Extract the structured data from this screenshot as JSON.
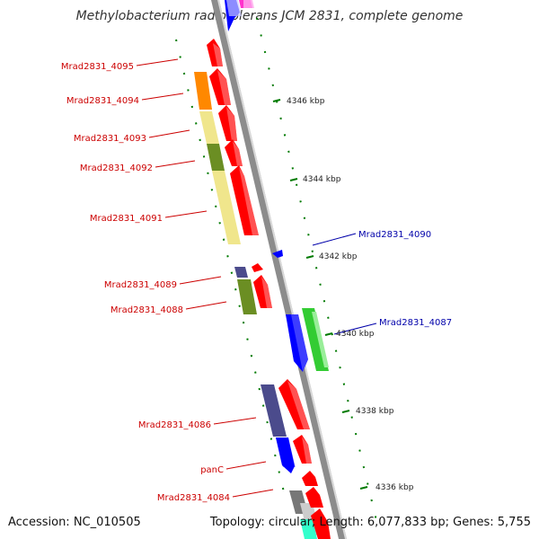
{
  "title": "Methylobacterium radiotolerans JCM 2831, complete genome",
  "footer": {
    "accession": "Accession: NC_010505",
    "summary": "Topology: circular; Length: 6,077,833 bp; Genes: 5,755"
  },
  "colors": {
    "forward_gene": "#ff0000",
    "reverse_gene": "#0000ff",
    "backbone": "#8c8c8c",
    "tick": "#007a00",
    "forward_label": "#cc0000",
    "reverse_label": "#0000aa"
  },
  "genes": [
    {
      "id": "Mrad2831_4095",
      "label": "Mrad2831_4095",
      "strand": "forward"
    },
    {
      "id": "Mrad2831_4094",
      "label": "Mrad2831_4094",
      "strand": "forward"
    },
    {
      "id": "Mrad2831_4093",
      "label": "Mrad2831_4093",
      "strand": "forward"
    },
    {
      "id": "Mrad2831_4092",
      "label": "Mrad2831_4092",
      "strand": "forward"
    },
    {
      "id": "Mrad2831_4091",
      "label": "Mrad2831_4091",
      "strand": "forward"
    },
    {
      "id": "Mrad2831_4090",
      "label": "Mrad2831_4090",
      "strand": "reverse"
    },
    {
      "id": "Mrad2831_4089",
      "label": "Mrad2831_4089",
      "strand": "forward"
    },
    {
      "id": "Mrad2831_4088",
      "label": "Mrad2831_4088",
      "strand": "forward"
    },
    {
      "id": "Mrad2831_4087",
      "label": "Mrad2831_4087",
      "strand": "reverse"
    },
    {
      "id": "Mrad2831_4086",
      "label": "Mrad2831_4086",
      "strand": "forward"
    },
    {
      "id": "panC",
      "label": "panC",
      "strand": "forward"
    },
    {
      "id": "Mrad2831_4084",
      "label": "Mrad2831_4084",
      "strand": "forward"
    }
  ],
  "ticks": [
    "4346 kbp",
    "4344 kbp",
    "4342 kbp",
    "4340 kbp",
    "4338 kbp",
    "4336 kbp"
  ]
}
